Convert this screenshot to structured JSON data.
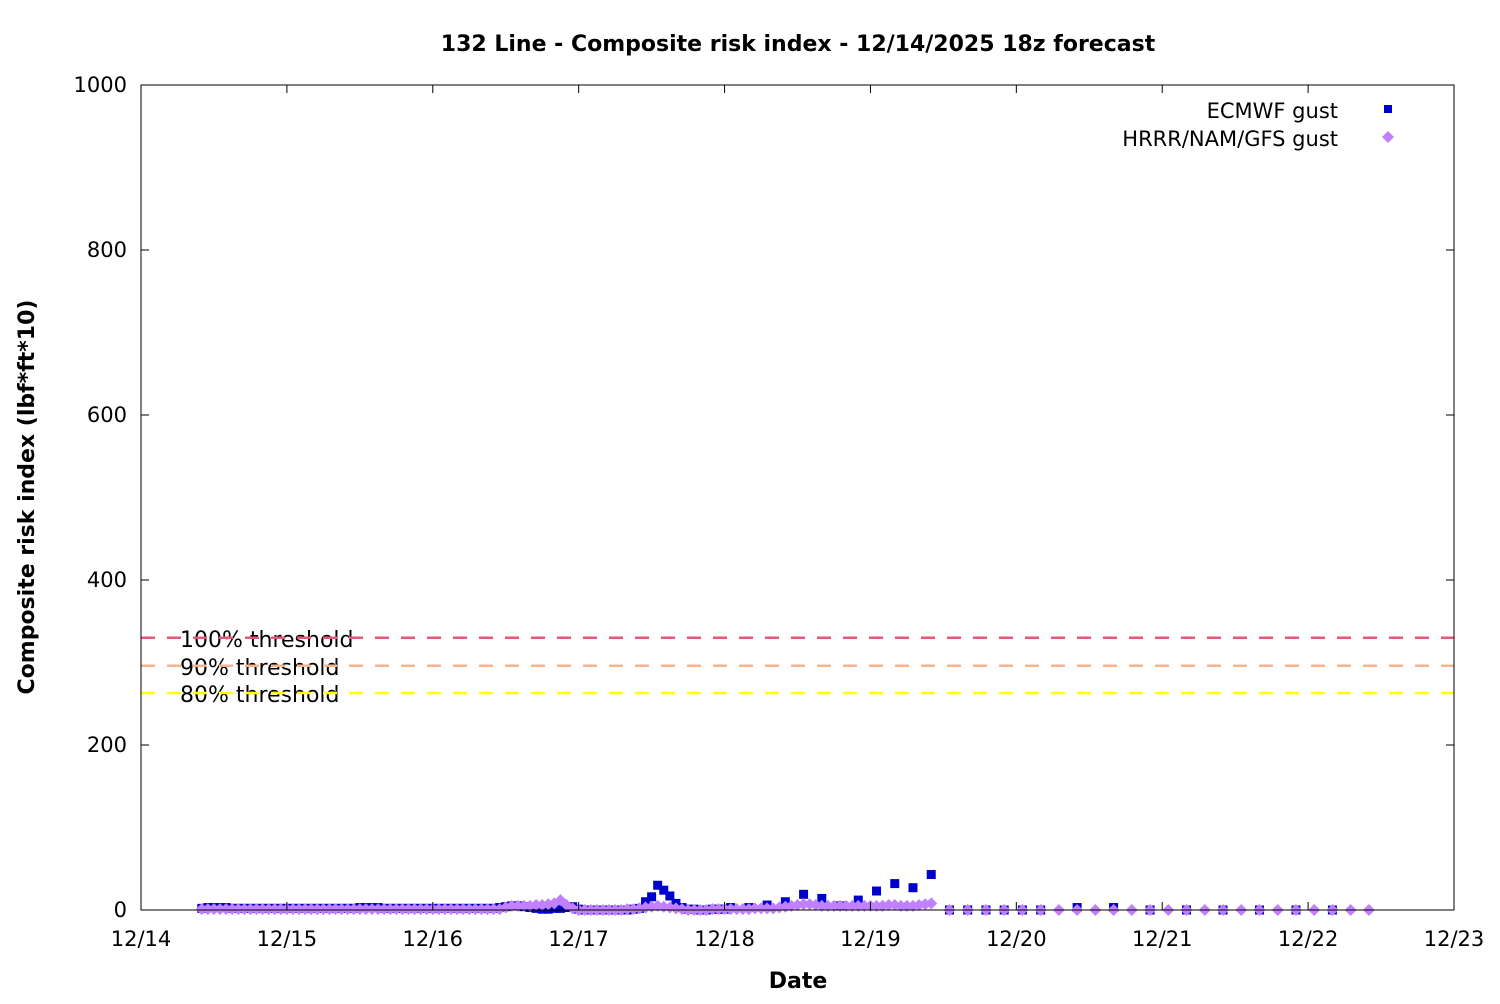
{
  "chart_data": {
    "type": "scatter",
    "title": "132 Line - Composite risk index - 12/14/2025 18z forecast",
    "xlabel": "Date",
    "ylabel": "Composite risk index (lbf*ft*10)",
    "xlim": [
      "2025-12-14T00",
      "2025-12-23T00"
    ],
    "ylim": [
      0,
      1000
    ],
    "x_tick_labels": [
      "12/14",
      "12/15",
      "12/16",
      "12/17",
      "12/18",
      "12/19",
      "12/20",
      "12/21",
      "12/22",
      "12/23"
    ],
    "y_tick_labels": [
      "0",
      "200",
      "400",
      "600",
      "800",
      "1000"
    ],
    "y_ticks": [
      0,
      200,
      400,
      600,
      800,
      1000
    ],
    "grid": false,
    "legend_position": "top-right",
    "thresholds": [
      {
        "label": "100% threshold",
        "value": 330,
        "color": "#e8577a"
      },
      {
        "label": "90% threshold",
        "value": 296,
        "color": "#f5b48a"
      },
      {
        "label": "80% threshold",
        "value": 263,
        "color": "#ffff00"
      }
    ],
    "series": [
      {
        "name": "ECMWF gust",
        "marker": "square",
        "color": "#0000cc",
        "segments": [
          {
            "start": "2025-12-14T10",
            "interval_hours": 1,
            "values": [
              2,
              3,
              3,
              3,
              3,
              2,
              2,
              2,
              2,
              2,
              2,
              2,
              2,
              2,
              2,
              2,
              2,
              2,
              2,
              2,
              2,
              2,
              2,
              2,
              2,
              2,
              3,
              3,
              3,
              3,
              2,
              2,
              2,
              2,
              2,
              2,
              2,
              2,
              2,
              2,
              2,
              2,
              2,
              2,
              2,
              2,
              2,
              2,
              2,
              3,
              4,
              5,
              5,
              4,
              3,
              2,
              1,
              1,
              2,
              2,
              3,
              4,
              1,
              0,
              0,
              0,
              0,
              0,
              0,
              0,
              0,
              1,
              2,
              10,
              16,
              30,
              24,
              17,
              8,
              3,
              1,
              1,
              0,
              0,
              1,
              1,
              1
            ]
          },
          {
            "start": "2025-12-18T01",
            "interval_hours": 3,
            "values": [
              3,
              3,
              6,
              10,
              19,
              14,
              5,
              12,
              23,
              32,
              27,
              43,
              0,
              0,
              0,
              0,
              0,
              0
            ]
          },
          {
            "start": "2025-12-20T10",
            "interval_hours": 6,
            "values": [
              3,
              3,
              0,
              0,
              0,
              0,
              0,
              0
            ]
          }
        ]
      },
      {
        "name": "HRRR/NAM/GFS gust",
        "marker": "diamond",
        "color": "#c080ff",
        "segments": [
          {
            "start": "2025-12-14T10",
            "interval_hours": 1,
            "values": [
              1,
              1,
              1,
              1,
              1,
              1,
              1,
              1,
              1,
              1,
              1,
              1,
              1,
              1,
              1,
              1,
              1,
              1,
              1,
              1,
              1,
              1,
              1,
              1,
              1,
              1,
              1,
              1,
              1,
              1,
              1,
              1,
              1,
              1,
              1,
              1,
              1,
              1,
              1,
              1,
              1,
              1,
              1,
              1,
              1,
              1,
              1,
              1,
              1,
              1,
              3,
              5,
              5,
              5,
              5,
              6,
              6,
              7,
              8,
              12,
              6,
              2,
              0,
              0,
              0,
              0,
              0,
              0,
              0,
              0,
              1,
              1,
              2,
              3,
              4,
              5,
              4,
              3,
              2,
              1,
              0,
              0,
              0,
              0,
              1,
              1,
              1,
              1,
              1,
              1,
              1,
              2,
              2,
              2,
              2,
              3,
              4,
              5,
              6,
              7,
              7,
              6,
              5,
              5,
              5,
              5,
              5,
              5,
              5,
              5,
              5,
              5,
              5,
              6,
              6,
              5,
              5,
              5,
              6,
              7,
              8
            ]
          },
          {
            "start": "2025-12-19T13",
            "interval_hours": 3,
            "values": [
              0,
              0,
              0,
              0,
              0,
              0,
              0,
              0,
              0,
              0,
              0,
              0,
              0,
              0,
              0,
              0,
              0,
              0,
              0,
              0,
              0,
              0,
              0,
              0
            ]
          }
        ]
      }
    ]
  }
}
